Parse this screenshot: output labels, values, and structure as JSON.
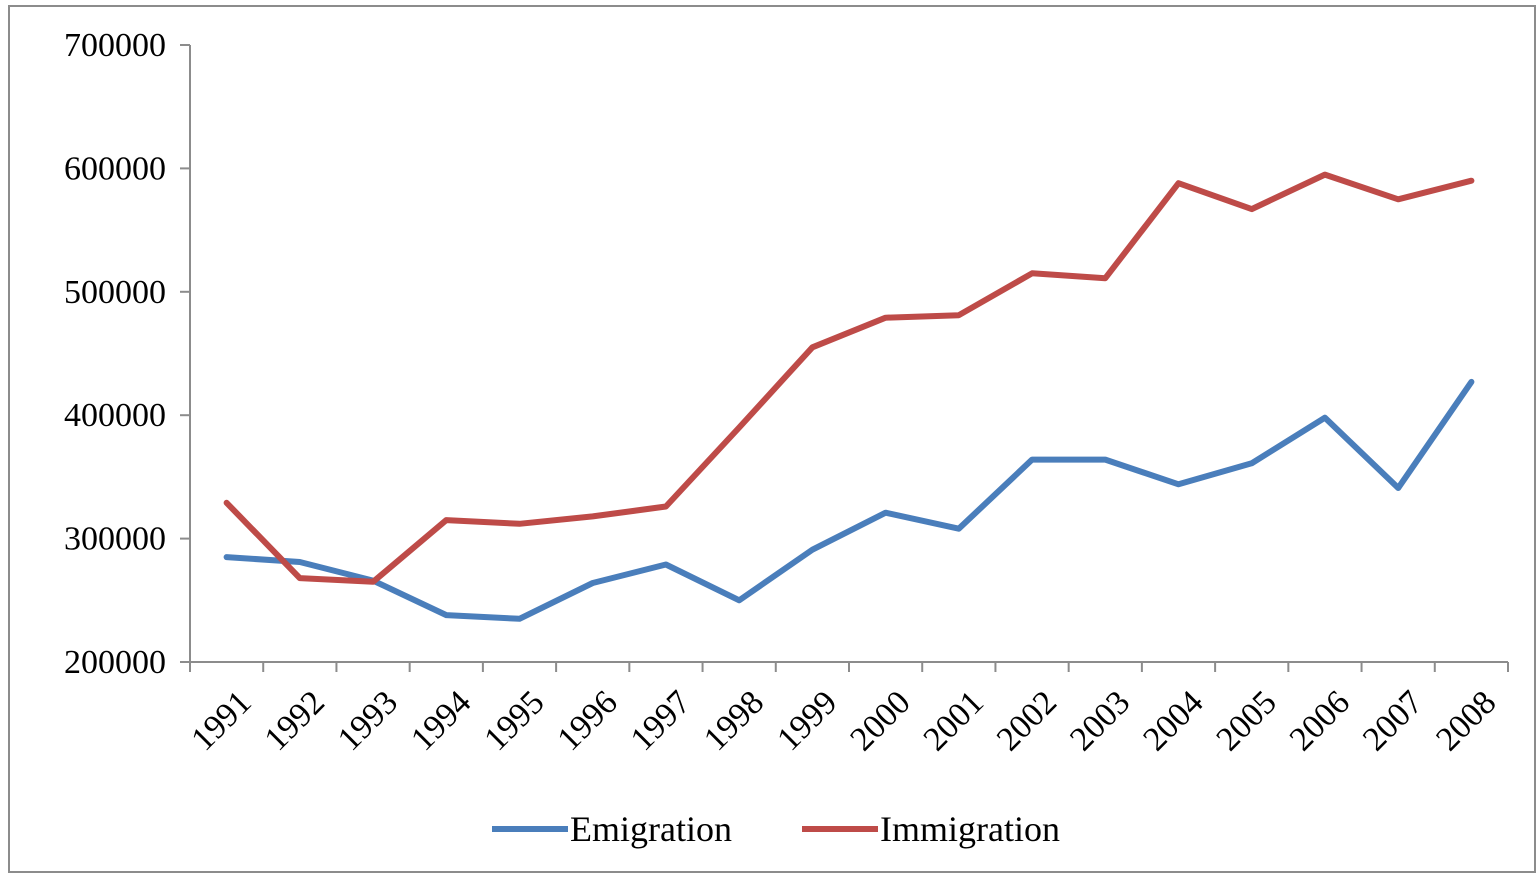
{
  "chart_data": {
    "type": "line",
    "title": "",
    "xlabel": "",
    "ylabel": "",
    "categories": [
      "1991",
      "1992",
      "1993",
      "1994",
      "1995",
      "1996",
      "1997",
      "1998",
      "1999",
      "2000",
      "2001",
      "2002",
      "2003",
      "2004",
      "2005",
      "2006",
      "2007",
      "2008"
    ],
    "ylim": [
      200000,
      700000
    ],
    "yticks": [
      200000,
      300000,
      400000,
      500000,
      600000,
      700000
    ],
    "ytick_labels": [
      "200000",
      "300000",
      "400000",
      "500000",
      "600000",
      "700000"
    ],
    "grid": false,
    "legend_position": "bottom",
    "series": [
      {
        "name": "Emigration",
        "color": "#4a7ebb",
        "values": [
          285000,
          281000,
          266000,
          238000,
          235000,
          264000,
          279000,
          250000,
          291000,
          321000,
          308000,
          364000,
          364000,
          344000,
          361000,
          398000,
          341000,
          427000
        ]
      },
      {
        "name": "Immigration",
        "color": "#be4b48",
        "values": [
          329000,
          268000,
          265000,
          315000,
          312000,
          318000,
          326000,
          390000,
          455000,
          479000,
          481000,
          515000,
          511000,
          588000,
          567000,
          595000,
          575000,
          590000
        ]
      }
    ]
  }
}
